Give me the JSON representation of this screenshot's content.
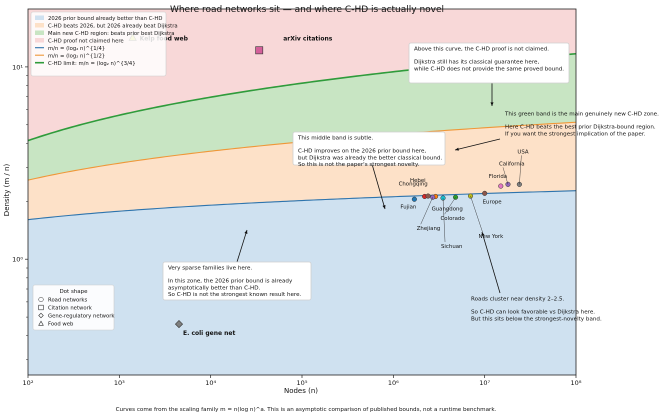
{
  "chart_data": {
    "type": "area",
    "title": "Where road networks sit — and where C-HD is actually novel",
    "xlabel": "Nodes (n)",
    "ylabel": "Density (m / n)",
    "xscale": "log",
    "yscale": "log",
    "xlim": [
      100,
      100000000
    ],
    "ylim": [
      0.25,
      20
    ],
    "x_ticks": [
      {
        "v": 100,
        "label": "10²"
      },
      {
        "v": 1000,
        "label": "10³"
      },
      {
        "v": 10000,
        "label": "10⁴"
      },
      {
        "v": 100000,
        "label": "10⁵"
      },
      {
        "v": 1000000,
        "label": "10⁶"
      },
      {
        "v": 10000000,
        "label": "10⁷"
      },
      {
        "v": 100000000,
        "label": "10⁸"
      }
    ],
    "y_ticks": [
      {
        "v": 1,
        "label": "10⁰"
      },
      {
        "v": 10,
        "label": "10¹"
      }
    ],
    "footer": "Curves come from the scaling family m = n(log n)^a. This is an asymptotic comparison of published bounds, not a runtime benchmark.",
    "regions": [
      {
        "name": "2026 prior bound already better than C-HD",
        "color": "#cfe1f0"
      },
      {
        "name": "C-HD beats 2026, but 2026 already beat Dijkstra",
        "color": "#fde1c8"
      },
      {
        "name": "Main new C-HD region: beats prior best Dijkstra",
        "color": "#c8e5c3"
      },
      {
        "name": "C-HD proof not claimed here",
        "color": "#f8d8d8"
      }
    ],
    "series": [
      {
        "name": "m/n = (log₂ n)^{1/4}",
        "exponent": 0.25,
        "color": "#2e74ad"
      },
      {
        "name": "m/n = (log₂ n)^{1/2}",
        "exponent": 0.5,
        "color": "#ef9738"
      },
      {
        "name": "C-HD limit: m/n = (log₂ n)^{3/4}",
        "exponent": 0.75,
        "color": "#2f9b3b"
      }
    ],
    "legend_position": "top-left",
    "points": [
      {
        "label": "Kelp food web",
        "n": 1400,
        "density": 14.2,
        "marker": "triangle",
        "color": "#d8d83c",
        "bold": true
      },
      {
        "label": "arXiv citations",
        "n": 34000,
        "density": 12.2,
        "marker": "square",
        "color": "#d4609a",
        "bold": true
      },
      {
        "label": "E. coli gene net",
        "n": 4500,
        "density": 0.46,
        "marker": "diamond",
        "color": "#7f7f7f",
        "bold": true
      },
      {
        "label": "Fujian",
        "n": 1700000,
        "density": 2.05,
        "marker": "circle",
        "color": "#1f77b4",
        "bold": false
      },
      {
        "label": "Chongqing",
        "n": 2200000,
        "density": 2.12,
        "marker": "circle",
        "color": "#d62728",
        "bold": false
      },
      {
        "label": "Hebei",
        "n": 2400000,
        "density": 2.13,
        "marker": "circle",
        "color": "#8c564b",
        "bold": false
      },
      {
        "label": "Guangdong",
        "n": 2900000,
        "density": 2.12,
        "marker": "circle",
        "color": "#ff7f0e",
        "bold": false
      },
      {
        "label": "Zhejiang",
        "n": 2700000,
        "density": 2.1,
        "marker": "circle",
        "color": "#9467bd",
        "bold": false
      },
      {
        "label": "Sichuan",
        "n": 3500000,
        "density": 2.08,
        "marker": "circle",
        "color": "#17becf",
        "bold": false
      },
      {
        "label": "Colorado",
        "n": 4800000,
        "density": 2.1,
        "marker": "circle",
        "color": "#2ca02c",
        "bold": false
      },
      {
        "label": "New York",
        "n": 7000000,
        "density": 2.13,
        "marker": "circle",
        "color": "#bcbd22",
        "bold": false
      },
      {
        "label": "Europe",
        "n": 10000000,
        "density": 2.2,
        "marker": "circle",
        "color": "#8c564b",
        "bold": false
      },
      {
        "label": "Florida",
        "n": 15000000,
        "density": 2.4,
        "marker": "circle",
        "color": "#e377c2",
        "bold": false
      },
      {
        "label": "California",
        "n": 18000000,
        "density": 2.45,
        "marker": "circle",
        "color": "#9467bd",
        "bold": false
      },
      {
        "label": "USA",
        "n": 24000000,
        "density": 2.45,
        "marker": "circle",
        "color": "#7f7f7f",
        "bold": false
      }
    ],
    "annotations": [
      {
        "id": "ann-top",
        "lines": [
          "Above this curve, the C-HD proof is not claimed.",
          "",
          "Dijkstra still has its classical guarantee here,",
          "while C-HD does not provide the same proved bound."
        ]
      },
      {
        "id": "ann-green",
        "lines": [
          "This green band is the main genuinely new C-HD zone.",
          "",
          "Here C-HD beats the best prior Dijkstra-bound region.",
          "If you want the strongest implication of the paper."
        ]
      },
      {
        "id": "ann-middle",
        "lines": [
          "This middle band is subtle.",
          "",
          "C-HD improves on the 2026 prior bound here,",
          "but Dijkstra was already the better classical bound.",
          "So this is not the paper's strongest novelty."
        ]
      },
      {
        "id": "ann-sparse",
        "lines": [
          "Very sparse families live here.",
          "",
          "In this zone, the 2026 prior bound is already",
          "asymptotically better than C-HD.",
          "So C-HD is not the strongest known result here."
        ]
      },
      {
        "id": "ann-roads",
        "lines": [
          "Roads cluster near density 2–2.5.",
          "",
          "So C-HD can look favorable vs Dijkstra here.",
          "But this sits below the strongest-novelty band."
        ]
      }
    ],
    "shape_legend": {
      "title": "Dot shape",
      "items": [
        {
          "label": "Road networks",
          "marker": "circle"
        },
        {
          "label": "Citation network",
          "marker": "square"
        },
        {
          "label": "Gene-regulatory network",
          "marker": "diamond"
        },
        {
          "label": "Food web",
          "marker": "triangle"
        }
      ]
    }
  }
}
